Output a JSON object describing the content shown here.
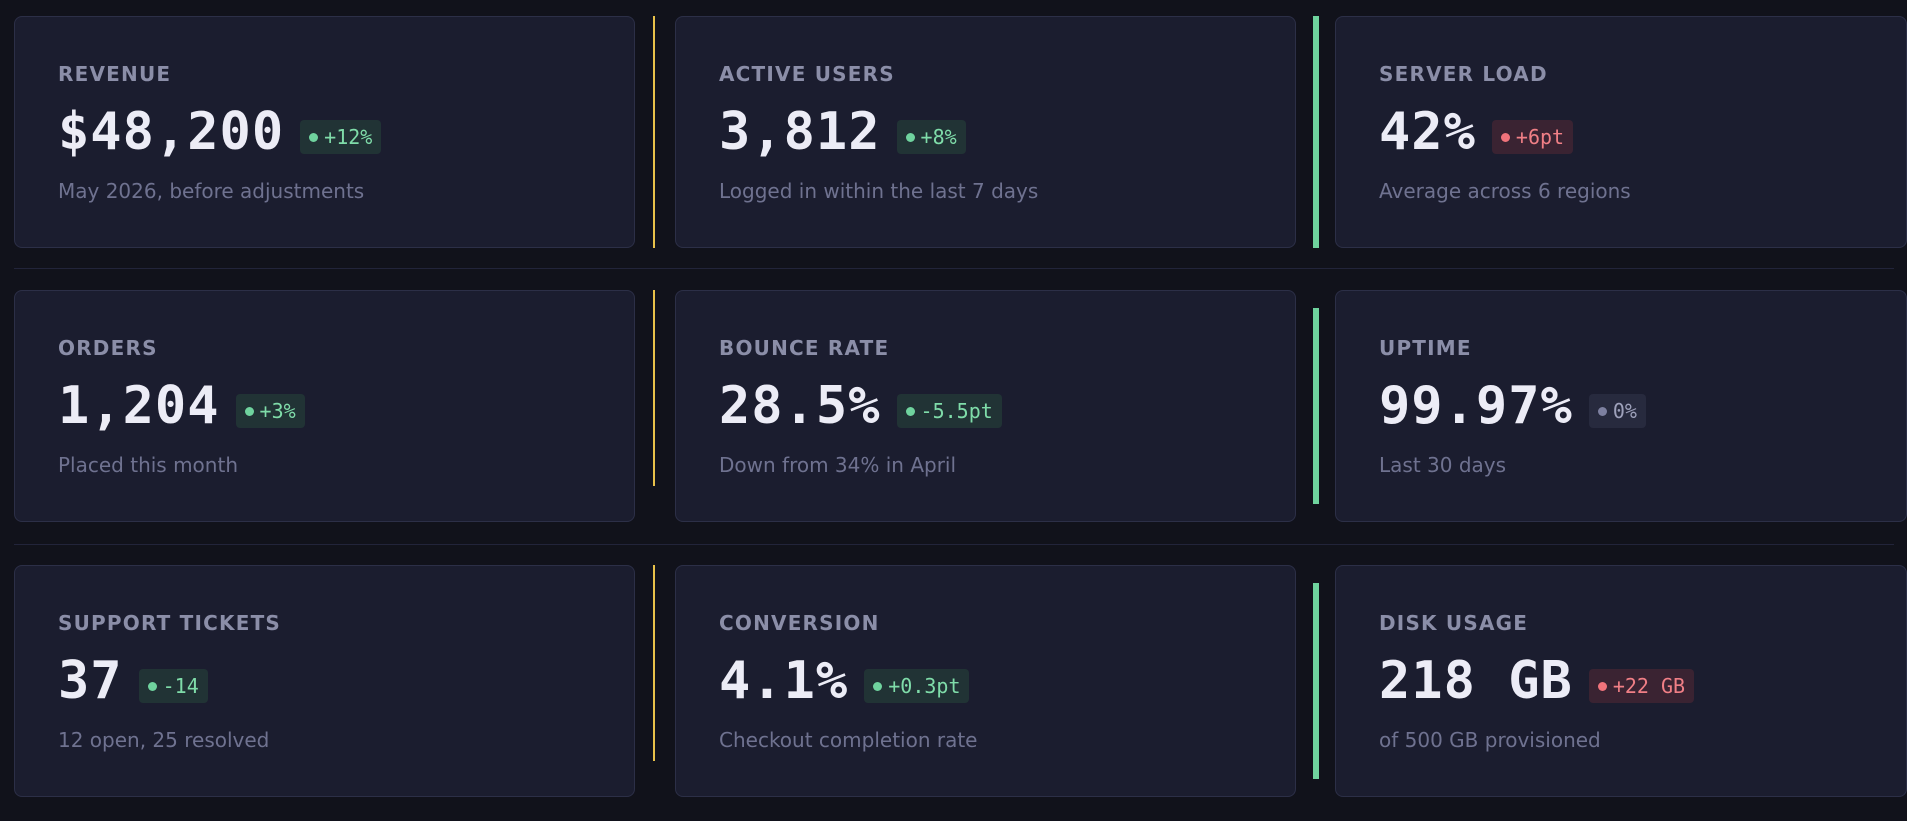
{
  "colors": {
    "background": "#11121b",
    "card": "#1b1d2f",
    "accent_yellow": "#e8c14a",
    "accent_green": "#6fd39e",
    "positive": "#7fdca9",
    "negative": "#f07f86",
    "neutral": "#9ea1bb"
  },
  "rows": [
    {
      "cards": [
        {
          "label": "REVENUE",
          "value": "$48,200",
          "delta": "+12%",
          "status": "up",
          "sub": "May 2026, before adjustments"
        },
        {
          "label": "ACTIVE USERS",
          "value": "3,812",
          "delta": "+8%",
          "status": "up",
          "sub": "Logged in within the last 7 days"
        },
        {
          "label": "SERVER LOAD",
          "value": "42%",
          "delta": "+6pt",
          "status": "down",
          "sub": "Average across 6 regions"
        }
      ]
    },
    {
      "cards": [
        {
          "label": "ORDERS",
          "value": "1,204",
          "delta": "+3%",
          "status": "up",
          "sub": "Placed this month"
        },
        {
          "label": "BOUNCE RATE",
          "value": "28.5%",
          "delta": "-5.5pt",
          "status": "up",
          "sub": "Down from 34% in April"
        },
        {
          "label": "UPTIME",
          "value": "99.97%",
          "delta": "0%",
          "status": "flat",
          "sub": "Last 30 days"
        }
      ]
    },
    {
      "cards": [
        {
          "label": "SUPPORT TICKETS",
          "value": "37",
          "delta": "-14",
          "status": "up",
          "sub": "12 open, 25 resolved"
        },
        {
          "label": "CONVERSION",
          "value": "4.1%",
          "delta": "+0.3pt",
          "status": "up",
          "sub": "Checkout completion rate"
        },
        {
          "label": "DISK USAGE",
          "value": "218 GB",
          "delta": "+22 GB",
          "status": "down",
          "sub": "of 500 GB provisioned"
        }
      ]
    }
  ]
}
